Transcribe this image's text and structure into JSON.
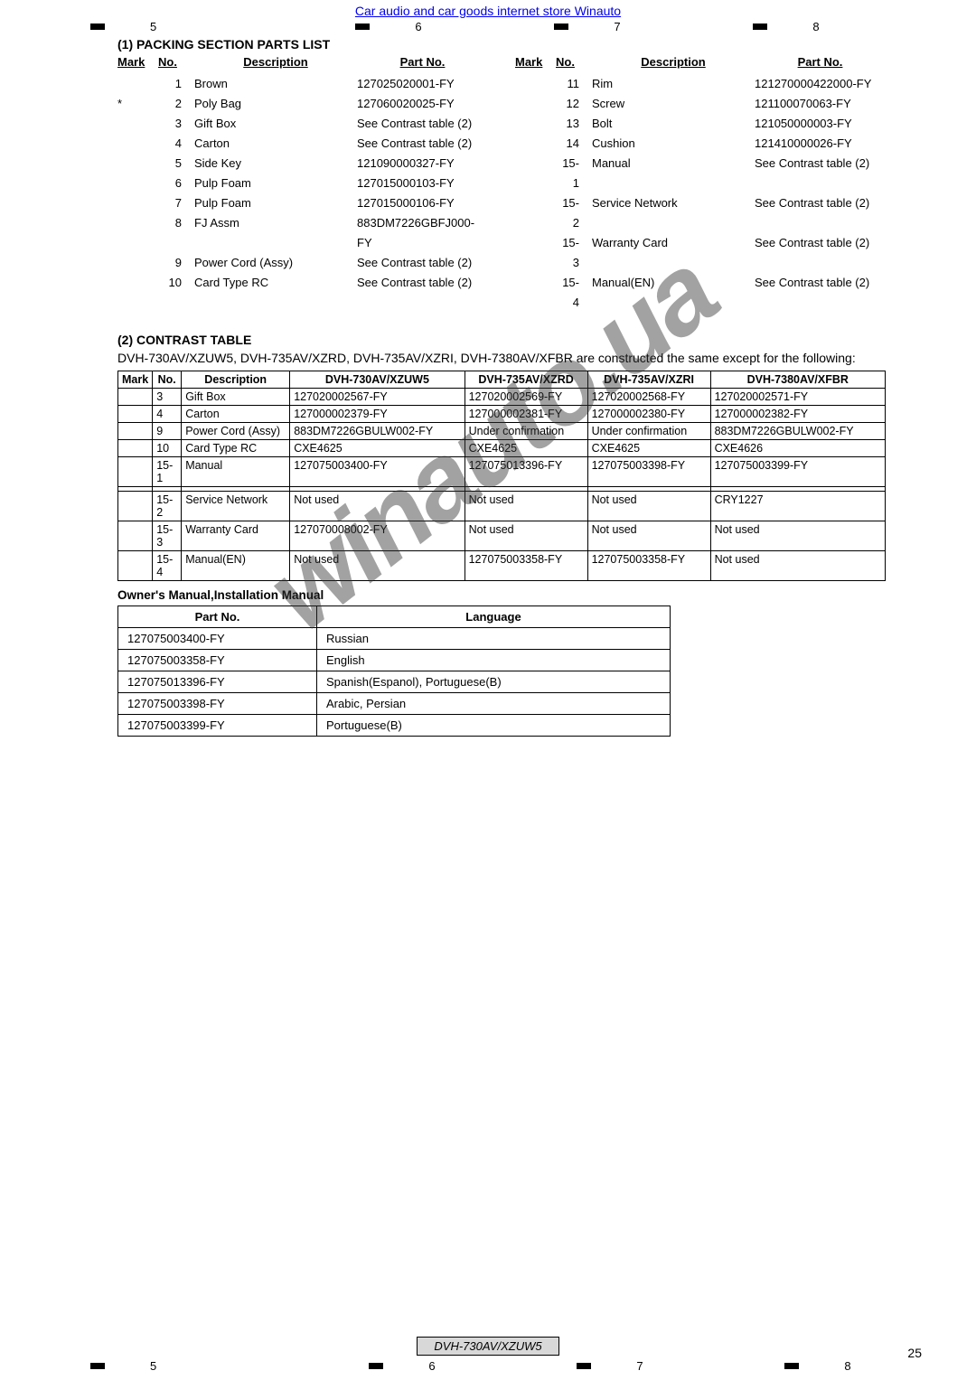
{
  "header_link": "Car audio and car goods internet store Winauto",
  "top_ticks": [
    "5",
    "6",
    "7",
    "8"
  ],
  "section1_title": "(1) PACKING SECTION PARTS LIST",
  "parts_headers": {
    "mark": "Mark",
    "no": "No.",
    "desc": "Description",
    "part": "Part No."
  },
  "parts_left": [
    {
      "mark": "",
      "no": "1",
      "desc": "Brown",
      "part": "127025020001-FY"
    },
    {
      "mark": "*",
      "no": "2",
      "desc": "Poly Bag",
      "part": "127060020025-FY"
    },
    {
      "mark": "",
      "no": "3",
      "desc": "Gift Box",
      "part": "See Contrast table (2)"
    },
    {
      "mark": "",
      "no": "4",
      "desc": "Carton",
      "part": "See Contrast table (2)"
    },
    {
      "mark": "",
      "no": "5",
      "desc": "Side Key",
      "part": "121090000327-FY"
    },
    {
      "mark": "",
      "no": "",
      "desc": "",
      "part": ""
    },
    {
      "mark": "",
      "no": "6",
      "desc": "Pulp Foam",
      "part": "127015000103-FY"
    },
    {
      "mark": "",
      "no": "7",
      "desc": "Pulp Foam",
      "part": "127015000106-FY"
    },
    {
      "mark": "",
      "no": "8",
      "desc": "FJ Assm",
      "part": "883DM7226GBFJ000-FY"
    },
    {
      "mark": "",
      "no": "9",
      "desc": "Power Cord (Assy)",
      "part": "See Contrast table (2)"
    },
    {
      "mark": "",
      "no": "10",
      "desc": "Card Type RC",
      "part": "See Contrast table (2)"
    }
  ],
  "parts_right": [
    {
      "mark": "",
      "no": "",
      "desc": "",
      "part": ""
    },
    {
      "mark": "",
      "no": "11",
      "desc": "Rim",
      "part": "121270000422000-FY"
    },
    {
      "mark": "",
      "no": "12",
      "desc": "Screw",
      "part": "121100070063-FY"
    },
    {
      "mark": "",
      "no": "13",
      "desc": "Bolt",
      "part": "121050000003-FY"
    },
    {
      "mark": "",
      "no": "14",
      "desc": "Cushion",
      "part": "121410000026-FY"
    },
    {
      "mark": "",
      "no": "15-1",
      "desc": "Manual",
      "part": "See Contrast table (2)"
    },
    {
      "mark": "",
      "no": "",
      "desc": "",
      "part": ""
    },
    {
      "mark": "",
      "no": "15-2",
      "desc": "Service Network",
      "part": "See Contrast table (2)"
    },
    {
      "mark": "",
      "no": "15-3",
      "desc": "Warranty Card",
      "part": "See Contrast table (2)"
    },
    {
      "mark": "",
      "no": "15-4",
      "desc": "Manual(EN)",
      "part": "See Contrast table (2)"
    }
  ],
  "section2_title": "(2) CONTRAST TABLE",
  "contrast_intro": "DVH-730AV/XZUW5, DVH-735AV/XZRD, DVH-735AV/XZRI, DVH-7380AV/XFBR are constructed the same except for the following:",
  "contrast_headers": [
    "Mark",
    "No.",
    "Description",
    "DVH-730AV/XZUW5",
    "DVH-735AV/XZRD",
    "DVH-735AV/XZRI",
    "DVH-7380AV/XFBR"
  ],
  "contrast_rows": [
    [
      "",
      "3",
      "Gift Box",
      "127020002567-FY",
      "127020002569-FY",
      "127020002568-FY",
      "127020002571-FY"
    ],
    [
      "",
      "4",
      "Carton",
      "127000002379-FY",
      "127000002381-FY",
      "127000002380-FY",
      "127000002382-FY"
    ],
    [
      "",
      "9",
      "Power Cord (Assy)",
      "883DM7226GBULW002-FY",
      "Under confirmation",
      "Under confirmation",
      "883DM7226GBULW002-FY"
    ],
    [
      "",
      "10",
      "Card Type RC",
      "CXE4625",
      "CXE4625",
      "CXE4625",
      "CXE4626"
    ],
    [
      "",
      "15-1",
      "Manual",
      "127075003400-FY",
      "127075013396-FY",
      "127075003398-FY",
      "127075003399-FY"
    ],
    [
      "",
      "",
      "",
      "",
      "",
      "",
      ""
    ],
    [
      "",
      "15-2",
      "Service Network",
      "Not used",
      "Not used",
      "Not used",
      "CRY1227"
    ],
    [
      "",
      "15-3",
      "Warranty Card",
      "127070008002-FY",
      "Not used",
      "Not used",
      "Not used"
    ],
    [
      "",
      "15-4",
      "Manual(EN)",
      "Not used",
      "127075003358-FY",
      "127075003358-FY",
      "Not used"
    ]
  ],
  "manual_title": "Owner's Manual,Installation Manual",
  "manual_headers": [
    "Part No.",
    "Language"
  ],
  "manual_rows": [
    [
      "127075003400-FY",
      "Russian"
    ],
    [
      "127075003358-FY",
      "English"
    ],
    [
      "127075013396-FY",
      "Spanish(Espanol), Portuguese(B)"
    ],
    [
      "127075003398-FY",
      "Arabic, Persian"
    ],
    [
      "127075003399-FY",
      "Portuguese(B)"
    ]
  ],
  "watermark": "winauto.ua",
  "footer_model": "DVH-730AV/XZUW5",
  "footer_ticks": [
    "5",
    "6",
    "7",
    "8"
  ],
  "page_num": "25"
}
